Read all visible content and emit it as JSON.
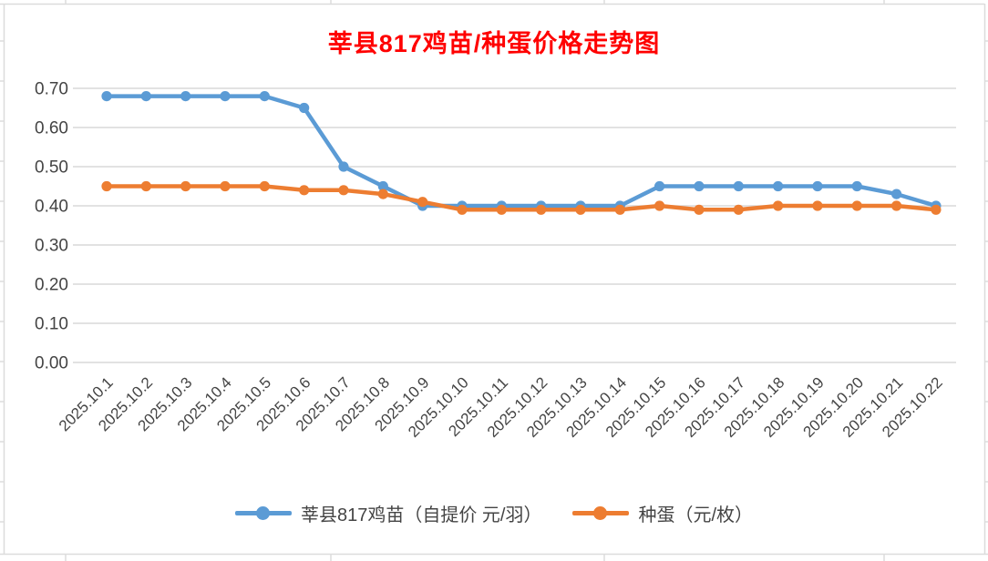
{
  "chart_data": {
    "type": "line",
    "title": "莘县817鸡苗/种蛋价格走势图",
    "title_color": "#FF0000",
    "categories": [
      "2025.10.1",
      "2025.10.2",
      "2025.10.3",
      "2025.10.4",
      "2025.10.5",
      "2025.10.6",
      "2025.10.7",
      "2025.10.8",
      "2025.10.9",
      "2025.10.10",
      "2025.10.11",
      "2025.10.12",
      "2025.10.13",
      "2025.10.14",
      "2025.10.15",
      "2025.10.16",
      "2025.10.17",
      "2025.10.18",
      "2025.10.19",
      "2025.10.20",
      "2025.10.21",
      "2025.10.22"
    ],
    "series": [
      {
        "name": "莘县817鸡苗（自提价 元/羽）",
        "color": "#5B9BD5",
        "values": [
          0.68,
          0.68,
          0.68,
          0.68,
          0.68,
          0.65,
          0.5,
          0.45,
          0.4,
          0.4,
          0.4,
          0.4,
          0.4,
          0.4,
          0.45,
          0.45,
          0.45,
          0.45,
          0.45,
          0.45,
          0.43,
          0.4
        ]
      },
      {
        "name": "种蛋（元/枚）",
        "color": "#ED7D31",
        "values": [
          0.45,
          0.45,
          0.45,
          0.45,
          0.45,
          0.44,
          0.44,
          0.43,
          0.41,
          0.39,
          0.39,
          0.39,
          0.39,
          0.39,
          0.4,
          0.39,
          0.39,
          0.4,
          0.4,
          0.4,
          0.4,
          0.39
        ]
      }
    ],
    "y_ticks": [
      "0.70",
      "0.60",
      "0.50",
      "0.40",
      "0.30",
      "0.20",
      "0.10",
      "0.00"
    ],
    "ylim": [
      0,
      0.7
    ],
    "grid": true,
    "legend_position": "bottom",
    "axis_text_color": "#444444",
    "gridline_color": "#D9D9D9",
    "frame_color": "#DCDCDC",
    "background_color": "#FFFFFF"
  }
}
